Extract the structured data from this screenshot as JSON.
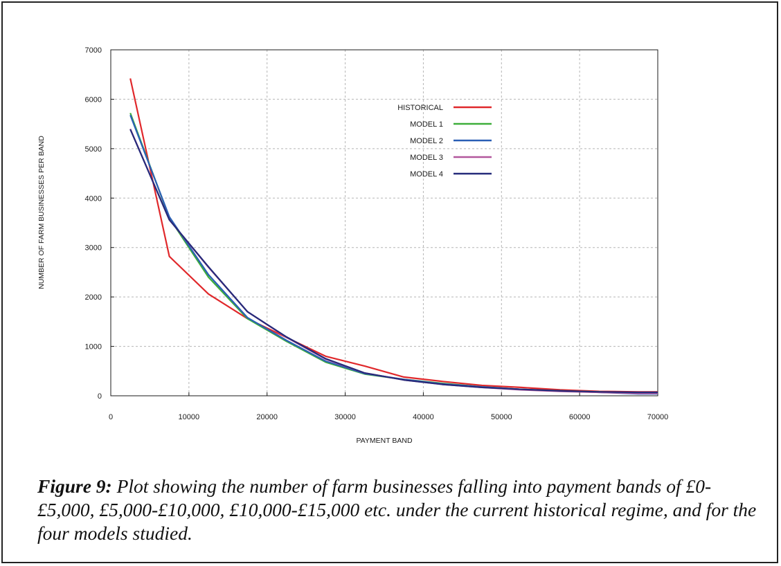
{
  "chart_data": {
    "type": "line",
    "title": "",
    "xlabel": "PAYMENT  BAND",
    "ylabel": "NUMBER OF FARM BUSINESSES PER BAND",
    "xlim": [
      0,
      70000
    ],
    "ylim": [
      0,
      7000
    ],
    "x_ticks": [
      0,
      10000,
      20000,
      30000,
      40000,
      50000,
      60000,
      70000
    ],
    "y_ticks": [
      0,
      1000,
      2000,
      3000,
      4000,
      5000,
      6000,
      7000
    ],
    "grid": true,
    "legend_position": "top-center",
    "series": [
      {
        "name": "HISTORICAL",
        "color": "#e0282b",
        "x": [
          2500,
          7500,
          12500,
          17500,
          22500,
          27500,
          32500,
          37500,
          42500,
          47500,
          52500,
          57500,
          62500,
          67500,
          70000
        ],
        "values": [
          6420,
          2820,
          2060,
          1560,
          1180,
          800,
          600,
          380,
          290,
          210,
          170,
          120,
          90,
          80,
          80
        ]
      },
      {
        "name": "MODEL 1",
        "color": "#3dae3a",
        "x": [
          2500,
          7500,
          12500,
          17500,
          22500,
          27500,
          32500,
          37500,
          42500,
          47500,
          52500,
          57500,
          62500,
          67500,
          70000
        ],
        "values": [
          5720,
          3600,
          2400,
          1560,
          1100,
          680,
          440,
          330,
          250,
          180,
          130,
          100,
          80,
          50,
          50
        ]
      },
      {
        "name": "MODEL 2",
        "color": "#2a5fb5",
        "x": [
          2500,
          7500,
          12500,
          17500,
          22500,
          27500,
          32500,
          37500,
          42500,
          47500,
          52500,
          57500,
          62500,
          67500,
          70000
        ],
        "values": [
          5680,
          3620,
          2450,
          1580,
          1120,
          700,
          450,
          330,
          240,
          180,
          130,
          100,
          70,
          40,
          40
        ]
      },
      {
        "name": "MODEL 3",
        "color": "#b2569c",
        "x": [
          2500,
          7500,
          12500,
          17500,
          22500,
          27500,
          32500,
          37500,
          42500,
          47500,
          52500,
          57500,
          62500,
          67500,
          70000
        ],
        "values": [
          5400,
          3560,
          2600,
          1700,
          1180,
          740,
          460,
          320,
          230,
          170,
          120,
          90,
          70,
          50,
          50
        ]
      },
      {
        "name": "MODEL 4",
        "color": "#252a7a",
        "x": [
          2500,
          7500,
          12500,
          17500,
          22500,
          27500,
          32500,
          37500,
          42500,
          47500,
          52500,
          57500,
          62500,
          67500,
          70000
        ],
        "values": [
          5390,
          3560,
          2610,
          1700,
          1190,
          750,
          460,
          320,
          230,
          170,
          130,
          100,
          80,
          70,
          70
        ]
      }
    ]
  },
  "caption": {
    "label": "Figure 9:",
    "text": " Plot showing the number of farm businesses falling into payment bands of £0-£5,000, £5,000-£10,000, £10,000-£15,000 etc. under the current historical regime, and for the four models studied."
  }
}
